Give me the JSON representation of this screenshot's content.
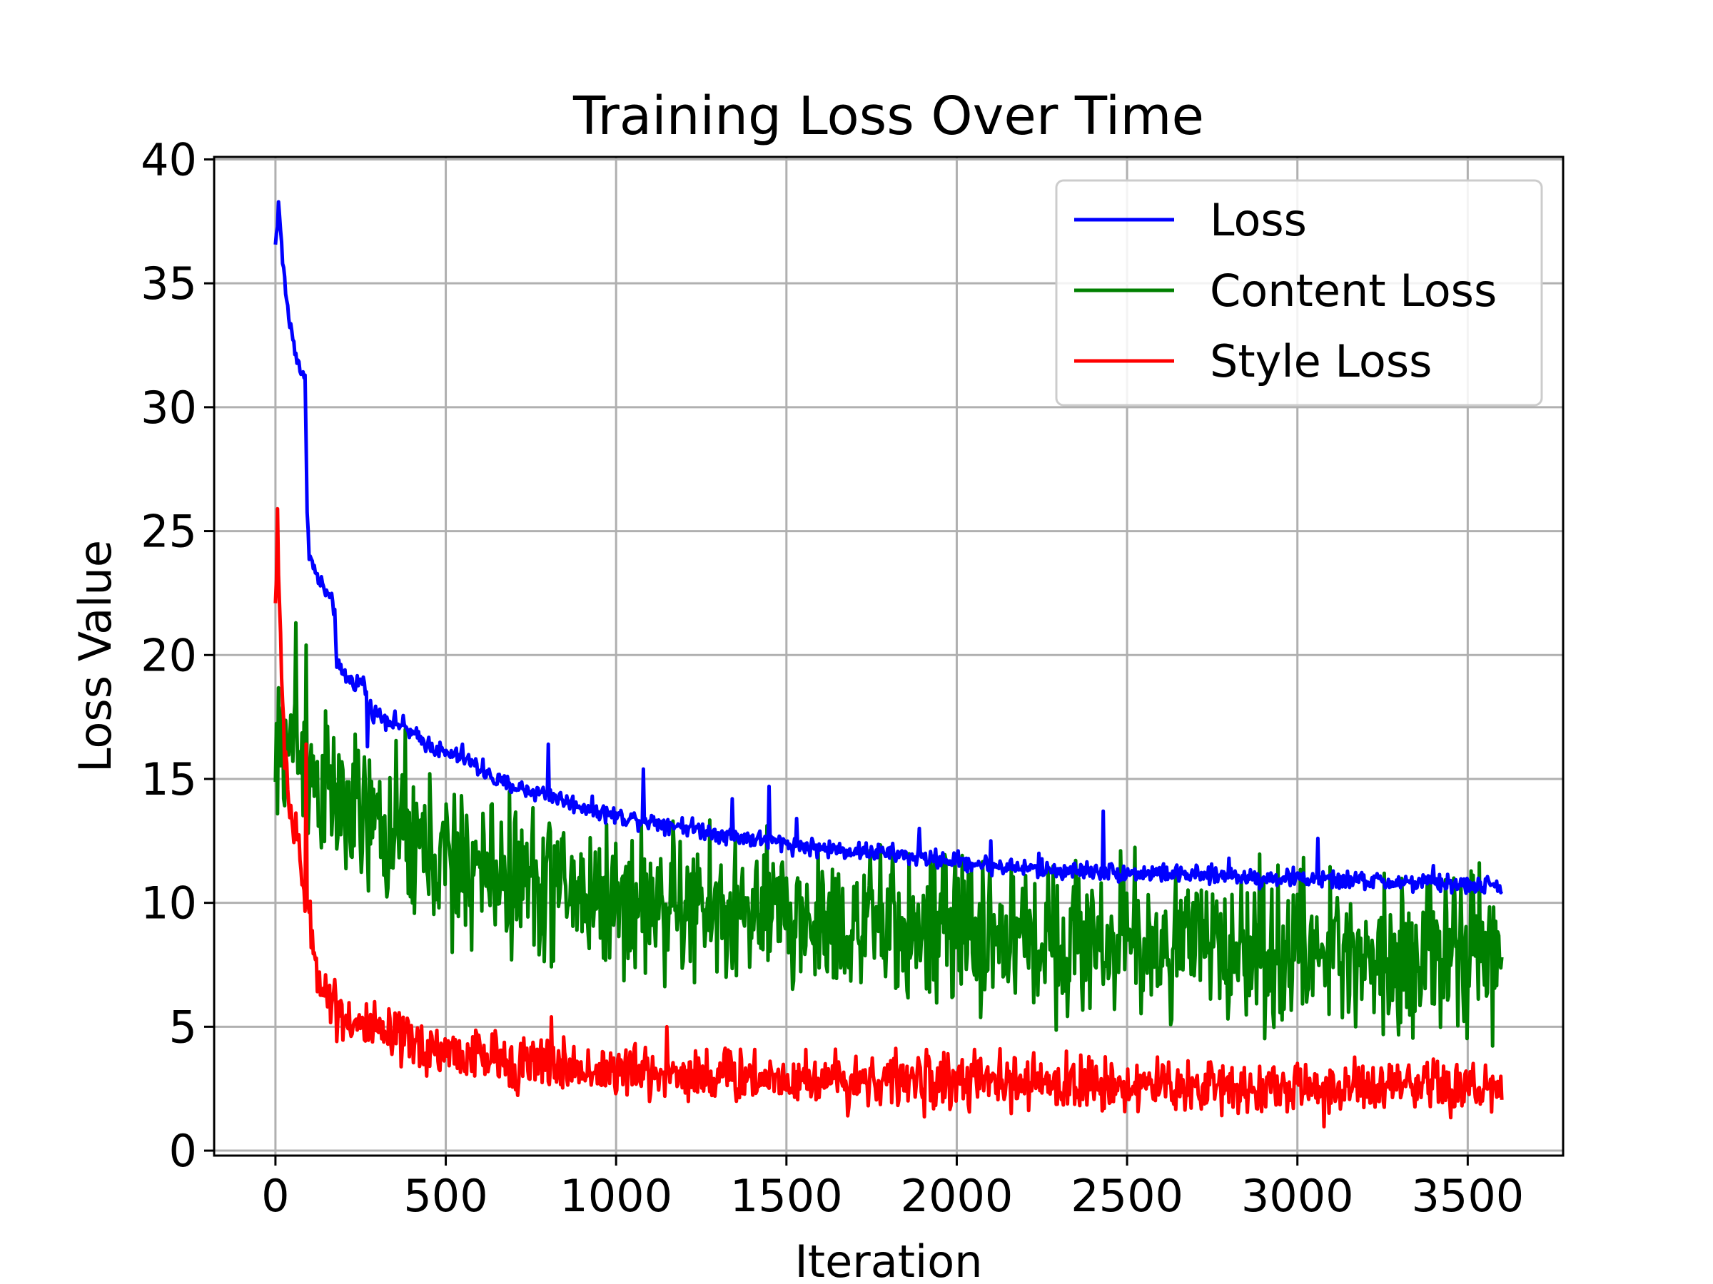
{
  "chart_data": {
    "type": "line",
    "title": "Training Loss Over Time",
    "xlabel": "Iteration",
    "ylabel": "Loss Value",
    "xlim": [
      -180,
      3780
    ],
    "ylim": [
      -0.2,
      40.1
    ],
    "xticks": [
      0,
      500,
      1000,
      1500,
      2000,
      2500,
      3000,
      3500
    ],
    "yticks": [
      0,
      5,
      10,
      15,
      20,
      25,
      30,
      35,
      40
    ],
    "grid": true,
    "legend_position": "top-right",
    "series": [
      {
        "name": "Loss",
        "color": "#0000ff",
        "x": [
          0,
          10,
          20,
          40,
          60,
          80,
          89,
          91,
          100,
          120,
          150,
          175,
          180,
          200,
          230,
          260,
          275,
          300,
          350,
          380,
          400,
          450,
          500,
          550,
          600,
          650,
          700,
          750,
          800,
          850,
          900,
          950,
          1000,
          1100,
          1200,
          1300,
          1400,
          1500,
          1600,
          1700,
          1800,
          1900,
          2000,
          2100,
          2200,
          2300,
          2400,
          2500,
          2600,
          2700,
          2800,
          2900,
          3000,
          3100,
          3200,
          3300,
          3400,
          3500,
          3600
        ],
        "y": [
          36.5,
          38.3,
          36.0,
          33.5,
          32.2,
          31.2,
          31.0,
          26.5,
          24.0,
          23.2,
          22.5,
          21.8,
          19.5,
          19.2,
          18.9,
          18.9,
          17.9,
          17.6,
          17.3,
          17.1,
          16.8,
          16.4,
          16.0,
          15.9,
          15.4,
          14.9,
          14.7,
          14.5,
          14.4,
          14.1,
          13.9,
          13.7,
          13.5,
          13.3,
          13.1,
          12.8,
          12.6,
          12.4,
          12.2,
          12.1,
          12.0,
          11.8,
          11.7,
          11.5,
          11.4,
          11.3,
          11.3,
          11.2,
          11.2,
          11.1,
          11.1,
          11.0,
          11.0,
          10.9,
          10.9,
          10.8,
          10.8,
          10.7,
          10.7
        ],
        "noise": 0.18,
        "spikes": [
          [
            270,
            16.3
          ],
          [
            395,
            17.0
          ],
          [
            550,
            16.4
          ],
          [
            610,
            15.8
          ],
          [
            800,
            16.4
          ],
          [
            1080,
            15.4
          ],
          [
            1340,
            14.2
          ],
          [
            1450,
            14.7
          ],
          [
            1530,
            13.4
          ],
          [
            1890,
            13.0
          ],
          [
            2100,
            12.5
          ],
          [
            2240,
            12.0
          ],
          [
            2430,
            13.7
          ],
          [
            2800,
            11.8
          ],
          [
            3060,
            12.6
          ],
          [
            3400,
            11.5
          ],
          [
            3450,
            10.9
          ]
        ]
      },
      {
        "name": "Content Loss",
        "color": "#008000",
        "x": [
          0,
          10,
          30,
          60,
          100,
          150,
          200,
          300,
          400,
          500,
          600,
          700,
          800,
          900,
          1000,
          1200,
          1400,
          1600,
          1800,
          2000,
          2200,
          2400,
          2600,
          2800,
          3000,
          3200,
          3400,
          3600
        ],
        "y": [
          14.5,
          16.0,
          16.5,
          16.2,
          15.2,
          14.5,
          13.8,
          13.0,
          12.3,
          11.8,
          11.3,
          11.0,
          10.7,
          10.4,
          10.1,
          9.8,
          9.5,
          9.2,
          9.0,
          8.8,
          8.6,
          8.5,
          8.3,
          8.2,
          8.1,
          8.0,
          7.9,
          7.9
        ],
        "noise": 1.5,
        "spikes": [
          [
            60,
            21.3
          ],
          [
            90,
            20.4
          ],
          [
            380,
            17.0
          ],
          [
            520,
            8.0
          ],
          [
            820,
            12.3
          ],
          [
            1500,
            11.0
          ],
          [
            2480,
            12.1
          ],
          [
            3270,
            5.9
          ]
        ]
      },
      {
        "name": "Style Loss",
        "color": "#ff0000",
        "x": [
          0,
          5,
          20,
          40,
          60,
          80,
          100,
          120,
          150,
          200,
          250,
          300,
          400,
          500,
          600,
          700,
          800,
          1000,
          1200,
          1400,
          1600,
          1800,
          2000,
          2200,
          2400,
          2600,
          2800,
          3000,
          3200,
          3400,
          3600
        ],
        "y": [
          22.0,
          24.5,
          18.0,
          14.0,
          12.5,
          11.0,
          9.0,
          7.5,
          6.3,
          5.5,
          5.0,
          4.7,
          4.3,
          4.0,
          3.8,
          3.6,
          3.4,
          3.2,
          3.1,
          3.0,
          2.9,
          2.85,
          2.8,
          2.7,
          2.7,
          2.6,
          2.6,
          2.5,
          2.5,
          2.5,
          2.5
        ],
        "noise": 0.55,
        "spikes": [
          [
            5,
            25.9
          ],
          [
            90,
            16.4
          ],
          [
            810,
            5.4
          ],
          [
            1150,
            5.0
          ]
        ]
      }
    ]
  }
}
